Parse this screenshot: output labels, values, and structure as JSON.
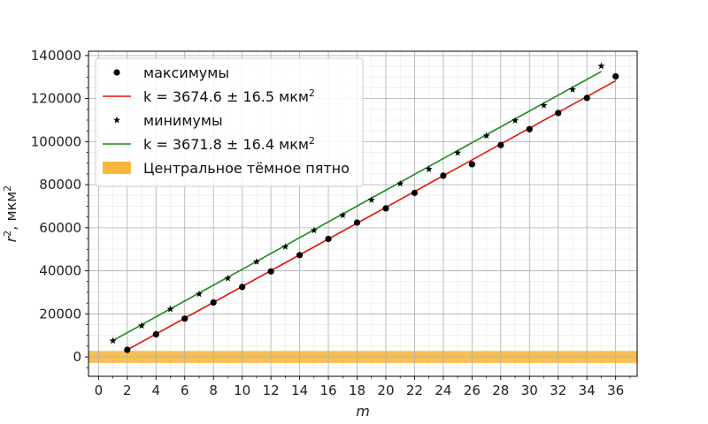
{
  "chart_data": {
    "type": "line",
    "xlabel": "m",
    "ylabel_main": "r",
    "ylabel_sup": "2",
    "ylabel_rest": ", мкм",
    "ylabel_unit_sup": "2",
    "xlim": [
      -0.7,
      37.5
    ],
    "ylim": [
      -9000,
      142000
    ],
    "xticks": [
      0,
      2,
      4,
      6,
      8,
      10,
      12,
      14,
      16,
      18,
      20,
      22,
      24,
      26,
      28,
      30,
      32,
      34,
      36
    ],
    "yticks": [
      0,
      20000,
      40000,
      60000,
      80000,
      100000,
      120000,
      140000
    ],
    "grid": true,
    "legend_position": "top-left",
    "series": [
      {
        "name": "максимумы",
        "kind": "scatter",
        "marker": "circle",
        "color": "#000000",
        "x": [
          2,
          4,
          6,
          8,
          10,
          12,
          14,
          16,
          18,
          20,
          22,
          24,
          26,
          28,
          30,
          32,
          34,
          36
        ],
        "y": [
          3300,
          10500,
          17800,
          25300,
          32500,
          39700,
          47300,
          54800,
          62400,
          69000,
          76200,
          84200,
          89500,
          98400,
          105800,
          113300,
          120300,
          130300
        ]
      },
      {
        "name": "k = 3674.6 ± 16.5 мкм",
        "name_sup": "2",
        "kind": "line",
        "color": "#e3120b",
        "x": [
          2,
          36
        ],
        "y": [
          3300,
          128300
        ]
      },
      {
        "name": "минимумы",
        "kind": "scatter",
        "marker": "star",
        "color": "#000000",
        "x": [
          1,
          3,
          5,
          7,
          9,
          11,
          13,
          15,
          17,
          19,
          21,
          23,
          25,
          27,
          29,
          31,
          33,
          35
        ],
        "y": [
          7500,
          14500,
          22200,
          29200,
          36500,
          44200,
          51200,
          58800,
          65800,
          72900,
          80500,
          87200,
          94800,
          102700,
          109800,
          116800,
          124200,
          135100
        ]
      },
      {
        "name": "k = 3671.8 ± 16.4 мкм",
        "name_sup": "2",
        "kind": "line",
        "color": "#1a8a1a",
        "x": [
          1,
          35
        ],
        "y": [
          7600,
          132600
        ]
      },
      {
        "name": "Центральное тёмное пятно",
        "kind": "band",
        "color": "#f8b840",
        "y_range": [
          -2800,
          2800
        ]
      }
    ]
  }
}
